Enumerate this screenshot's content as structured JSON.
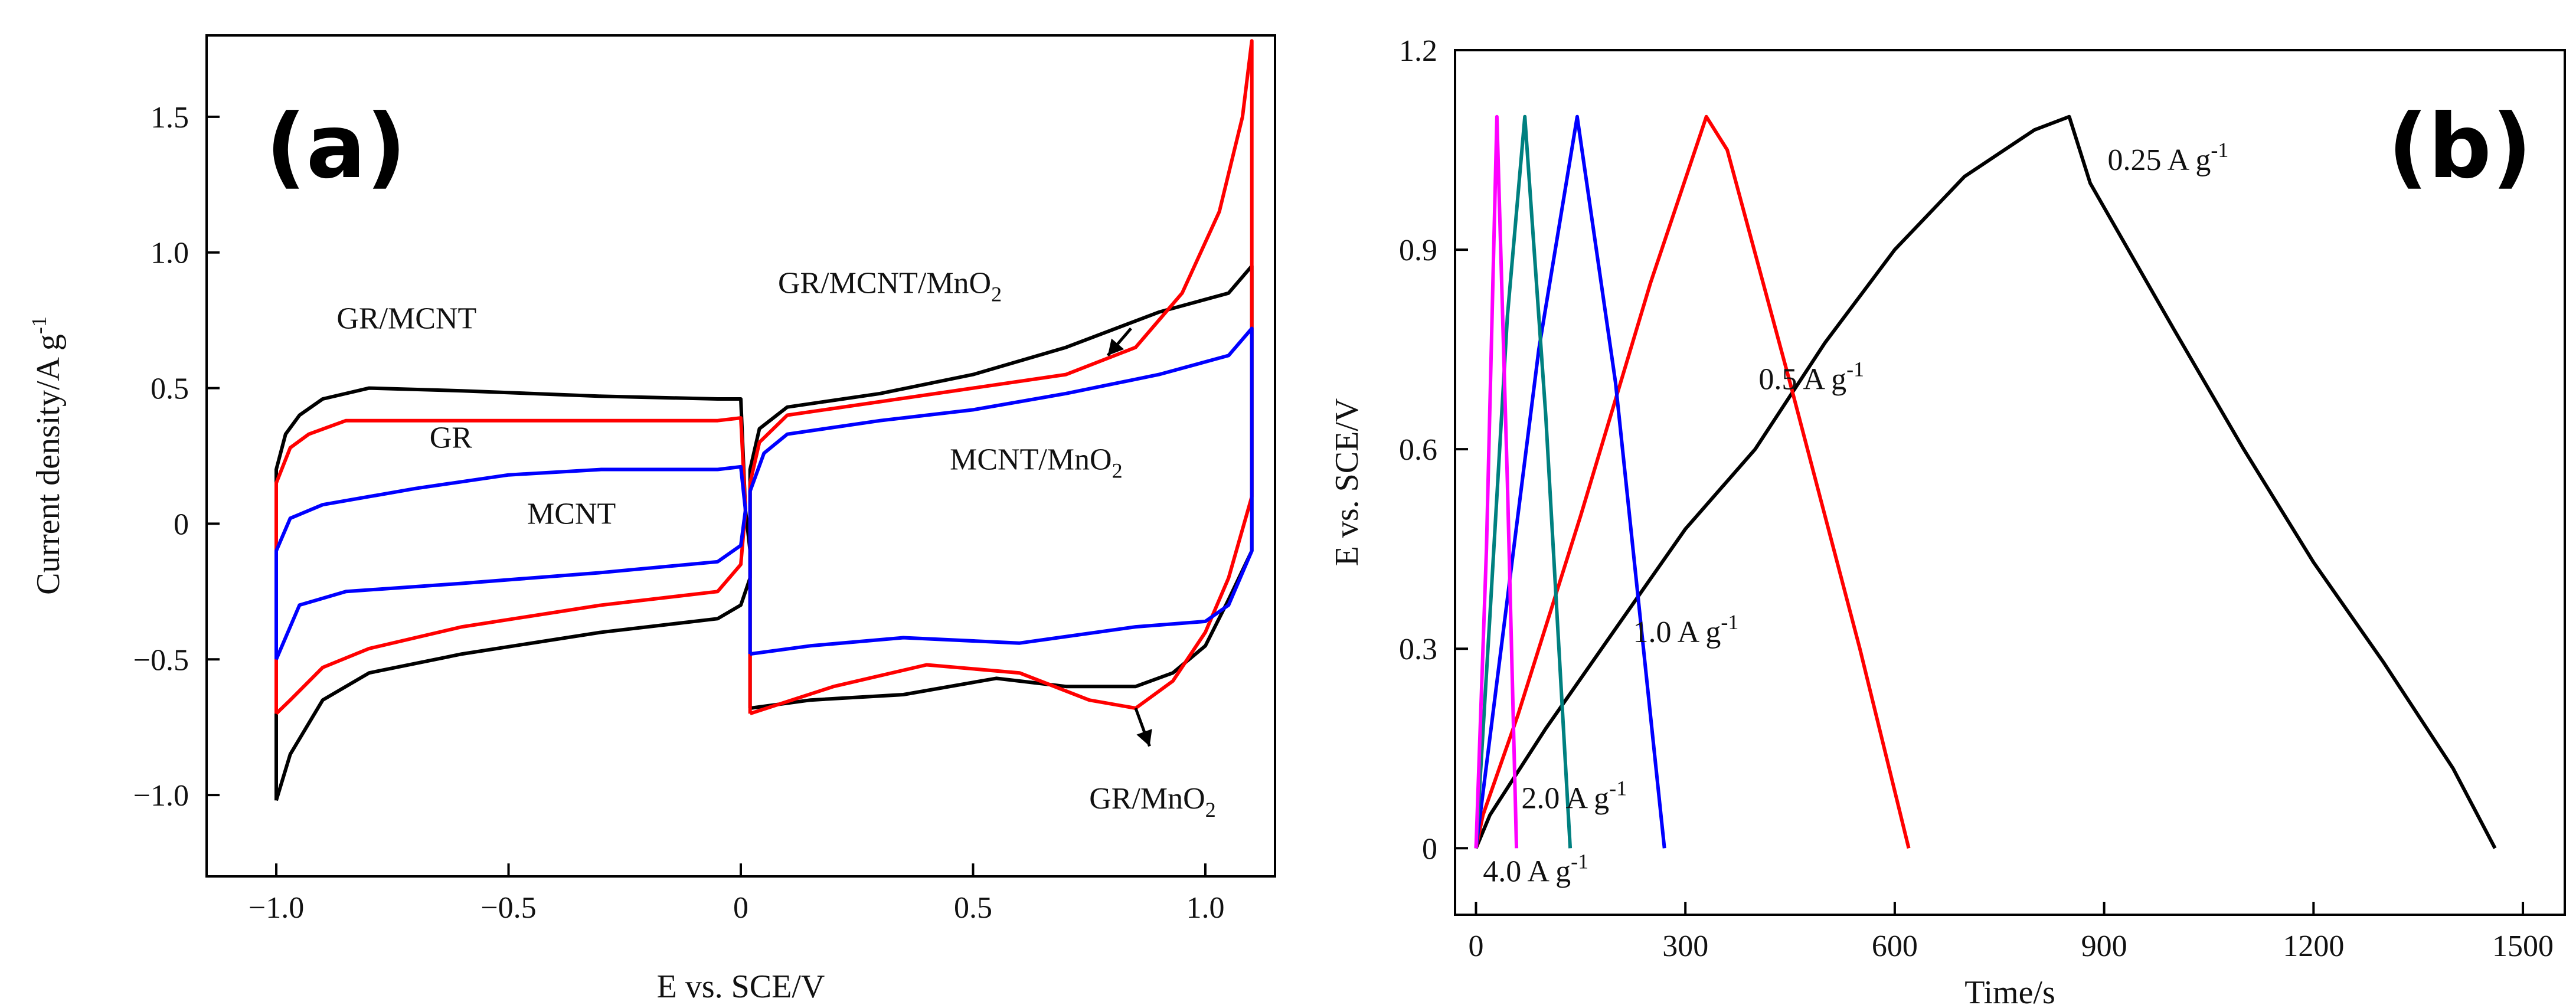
{
  "chart_data": [
    {
      "panel": "(a)",
      "type": "line",
      "xlabel": "E vs. SCE/V",
      "ylabel": "Current density/A g",
      "ylabel_sup": "-1",
      "xlim": [
        -1.15,
        1.15
      ],
      "ylim": [
        -1.3,
        1.8
      ],
      "xticks": [
        -1.0,
        -0.5,
        0,
        0.5,
        1.0
      ],
      "xtick_labels": [
        "−1.0",
        "−0.5",
        "0",
        "0.5",
        "1.0"
      ],
      "yticks": [
        1.5,
        1.0,
        0.5,
        0,
        -0.5,
        -1.0
      ],
      "ytick_labels": [
        "1.5",
        "1.0",
        "0.5",
        "0",
        "−0.5",
        "−1.0"
      ],
      "series": [
        {
          "name": "GR/MCNT",
          "color": "#000000",
          "points": [
            [
              -1.0,
              -1.02
            ],
            [
              -1.0,
              0.2
            ],
            [
              -0.98,
              0.33
            ],
            [
              -0.95,
              0.4
            ],
            [
              -0.9,
              0.46
            ],
            [
              -0.8,
              0.5
            ],
            [
              -0.6,
              0.49
            ],
            [
              -0.3,
              0.47
            ],
            [
              -0.05,
              0.46
            ],
            [
              0.0,
              0.46
            ],
            [
              0.01,
              0.05
            ],
            [
              0.02,
              -0.1
            ],
            [
              0.02,
              -0.2
            ],
            [
              0.0,
              -0.3
            ],
            [
              -0.05,
              -0.35
            ],
            [
              -0.3,
              -0.4
            ],
            [
              -0.6,
              -0.48
            ],
            [
              -0.8,
              -0.55
            ],
            [
              -0.9,
              -0.65
            ],
            [
              -0.97,
              -0.85
            ],
            [
              -1.0,
              -1.02
            ]
          ]
        },
        {
          "name": "GR",
          "color": "#ff0000",
          "points": [
            [
              -1.0,
              -0.7
            ],
            [
              -1.0,
              0.15
            ],
            [
              -0.97,
              0.28
            ],
            [
              -0.93,
              0.33
            ],
            [
              -0.85,
              0.38
            ],
            [
              -0.6,
              0.38
            ],
            [
              -0.3,
              0.38
            ],
            [
              -0.05,
              0.38
            ],
            [
              0.0,
              0.39
            ],
            [
              0.01,
              0.05
            ],
            [
              0.0,
              -0.15
            ],
            [
              -0.05,
              -0.25
            ],
            [
              -0.3,
              -0.3
            ],
            [
              -0.6,
              -0.38
            ],
            [
              -0.8,
              -0.46
            ],
            [
              -0.9,
              -0.53
            ],
            [
              -0.97,
              -0.65
            ],
            [
              -1.0,
              -0.7
            ]
          ]
        },
        {
          "name": "MCNT",
          "color": "#0000ff",
          "points": [
            [
              -1.0,
              -0.5
            ],
            [
              -1.0,
              -0.1
            ],
            [
              -0.97,
              0.02
            ],
            [
              -0.9,
              0.07
            ],
            [
              -0.7,
              0.13
            ],
            [
              -0.5,
              0.18
            ],
            [
              -0.3,
              0.2
            ],
            [
              -0.05,
              0.2
            ],
            [
              0.0,
              0.21
            ],
            [
              0.01,
              0.05
            ],
            [
              0.0,
              -0.08
            ],
            [
              -0.05,
              -0.14
            ],
            [
              -0.3,
              -0.18
            ],
            [
              -0.6,
              -0.22
            ],
            [
              -0.85,
              -0.25
            ],
            [
              -0.95,
              -0.3
            ],
            [
              -1.0,
              -0.5
            ]
          ]
        },
        {
          "name": "GR/MCNT/MnO2",
          "color": "#000000",
          "points": [
            [
              0.02,
              -0.68
            ],
            [
              0.02,
              0.2
            ],
            [
              0.04,
              0.35
            ],
            [
              0.1,
              0.43
            ],
            [
              0.3,
              0.48
            ],
            [
              0.5,
              0.55
            ],
            [
              0.7,
              0.65
            ],
            [
              0.9,
              0.78
            ],
            [
              1.05,
              0.85
            ],
            [
              1.1,
              0.95
            ],
            [
              1.1,
              -0.1
            ],
            [
              1.05,
              -0.28
            ],
            [
              1.0,
              -0.45
            ],
            [
              0.93,
              -0.55
            ],
            [
              0.85,
              -0.6
            ],
            [
              0.7,
              -0.6
            ],
            [
              0.55,
              -0.57
            ],
            [
              0.35,
              -0.63
            ],
            [
              0.15,
              -0.65
            ],
            [
              0.02,
              -0.68
            ]
          ]
        },
        {
          "name": "GR/MnO2",
          "color": "#ff0000",
          "points": [
            [
              0.02,
              -0.7
            ],
            [
              0.02,
              0.15
            ],
            [
              0.04,
              0.3
            ],
            [
              0.1,
              0.4
            ],
            [
              0.3,
              0.45
            ],
            [
              0.5,
              0.5
            ],
            [
              0.7,
              0.55
            ],
            [
              0.85,
              0.65
            ],
            [
              0.95,
              0.85
            ],
            [
              1.03,
              1.15
            ],
            [
              1.08,
              1.5
            ],
            [
              1.1,
              1.78
            ],
            [
              1.1,
              0.1
            ],
            [
              1.05,
              -0.2
            ],
            [
              1.0,
              -0.4
            ],
            [
              0.93,
              -0.58
            ],
            [
              0.85,
              -0.68
            ],
            [
              0.75,
              -0.65
            ],
            [
              0.6,
              -0.55
            ],
            [
              0.4,
              -0.52
            ],
            [
              0.2,
              -0.6
            ],
            [
              0.02,
              -0.7
            ]
          ]
        },
        {
          "name": "MCNT/MnO2",
          "color": "#0000ff",
          "points": [
            [
              0.02,
              -0.48
            ],
            [
              0.02,
              0.12
            ],
            [
              0.05,
              0.26
            ],
            [
              0.1,
              0.33
            ],
            [
              0.3,
              0.38
            ],
            [
              0.5,
              0.42
            ],
            [
              0.7,
              0.48
            ],
            [
              0.9,
              0.55
            ],
            [
              1.05,
              0.62
            ],
            [
              1.1,
              0.72
            ],
            [
              1.1,
              -0.1
            ],
            [
              1.05,
              -0.3
            ],
            [
              1.0,
              -0.36
            ],
            [
              0.85,
              -0.38
            ],
            [
              0.6,
              -0.44
            ],
            [
              0.35,
              -0.42
            ],
            [
              0.15,
              -0.45
            ],
            [
              0.02,
              -0.48
            ]
          ]
        }
      ],
      "annotations": [
        {
          "text": "GR/MCNT",
          "sub": "",
          "x": -0.87,
          "y": 0.72
        },
        {
          "text": "GR",
          "sub": "",
          "x": -0.67,
          "y": 0.28
        },
        {
          "text": "MCNT",
          "sub": "",
          "x": -0.46,
          "y": 0.0
        },
        {
          "text": "GR/MCNT/MnO",
          "sub": "2",
          "x": 0.08,
          "y": 0.85
        },
        {
          "text": "MCNT/MnO",
          "sub": "2",
          "x": 0.45,
          "y": 0.2
        },
        {
          "text": "GR/MnO",
          "sub": "2",
          "x": 0.75,
          "y": -1.05
        }
      ],
      "arrows": [
        {
          "from": [
            0.84,
            0.72
          ],
          "to": [
            0.79,
            0.62
          ]
        },
        {
          "from": [
            0.85,
            -0.68
          ],
          "to": [
            0.88,
            -0.82
          ]
        }
      ]
    },
    {
      "panel": "(b)",
      "type": "line",
      "xlabel": "Time/s",
      "ylabel": "E vs. SCE/V",
      "xlim": [
        -30,
        1560
      ],
      "ylim": [
        -0.1,
        1.2
      ],
      "xticks": [
        0,
        300,
        600,
        900,
        1200,
        1500
      ],
      "xtick_labels": [
        "0",
        "300",
        "600",
        "900",
        "1200",
        "1500"
      ],
      "yticks": [
        1.2,
        0.9,
        0.6,
        0.3,
        0
      ],
      "ytick_labels": [
        "1.2",
        "0.9",
        "0.6",
        "0.3",
        "0"
      ],
      "series": [
        {
          "name": "0.25 A g-1",
          "color": "#000000",
          "points": [
            [
              0,
              0.0
            ],
            [
              20,
              0.05
            ],
            [
              100,
              0.18
            ],
            [
              200,
              0.33
            ],
            [
              300,
              0.48
            ],
            [
              400,
              0.6
            ],
            [
              500,
              0.76
            ],
            [
              600,
              0.9
            ],
            [
              700,
              1.01
            ],
            [
              800,
              1.08
            ],
            [
              850,
              1.1
            ],
            [
              880,
              1.0
            ],
            [
              1000,
              0.78
            ],
            [
              1100,
              0.6
            ],
            [
              1200,
              0.43
            ],
            [
              1300,
              0.28
            ],
            [
              1400,
              0.12
            ],
            [
              1460,
              0.0
            ]
          ]
        },
        {
          "name": "0.5 A g-1",
          "color": "#ff0000",
          "points": [
            [
              0,
              0.0
            ],
            [
              10,
              0.05
            ],
            [
              60,
              0.2
            ],
            [
              150,
              0.5
            ],
            [
              250,
              0.85
            ],
            [
              330,
              1.1
            ],
            [
              360,
              1.05
            ],
            [
              450,
              0.7
            ],
            [
              550,
              0.3
            ],
            [
              620,
              0.0
            ]
          ]
        },
        {
          "name": "1.0 A g-1",
          "color": "#0000ff",
          "points": [
            [
              0,
              0.0
            ],
            [
              30,
              0.25
            ],
            [
              90,
              0.75
            ],
            [
              145,
              1.1
            ],
            [
              200,
              0.7
            ],
            [
              270,
              0.0
            ]
          ]
        },
        {
          "name": "2.0 A g-1",
          "color": "#008080",
          "points": [
            [
              0,
              0.0
            ],
            [
              20,
              0.35
            ],
            [
              45,
              0.8
            ],
            [
              70,
              1.1
            ],
            [
              100,
              0.65
            ],
            [
              135,
              0.0
            ]
          ]
        },
        {
          "name": "4.0 A g-1",
          "color": "#ff00ff",
          "points": [
            [
              0,
              0.0
            ],
            [
              15,
              0.45
            ],
            [
              30,
              1.1
            ],
            [
              45,
              0.55
            ],
            [
              58,
              0.0
            ]
          ]
        }
      ],
      "annotations": [
        {
          "text": "0.25 A g",
          "sup": "-1",
          "x": 905,
          "y": 1.02
        },
        {
          "text": "0.5 A g",
          "sup": "-1",
          "x": 405,
          "y": 0.69
        },
        {
          "text": "1.0 A g",
          "sup": "-1",
          "x": 225,
          "y": 0.31
        },
        {
          "text": "2.0 A g",
          "sup": "-1",
          "x": 65,
          "y": 0.06
        },
        {
          "text": "4.0 A g",
          "sup": "-1",
          "x": 10,
          "y": -0.05
        }
      ]
    }
  ],
  "colors": {
    "axis": "#000000",
    "background": "#ffffff"
  }
}
